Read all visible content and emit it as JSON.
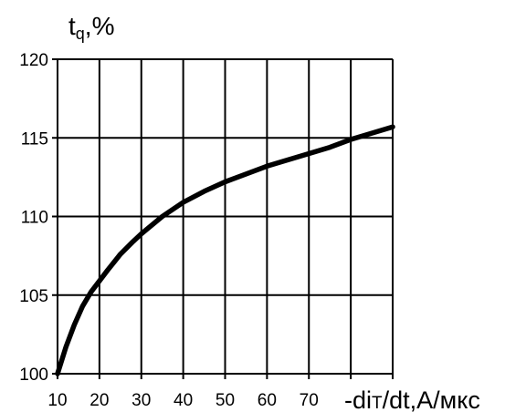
{
  "chart_data": {
    "type": "line",
    "ylabel": {
      "main": "t",
      "sub": "q",
      "suffix": ",%"
    },
    "xlabel": {
      "prefix": "-di",
      "sub": "T",
      "suffix": "/dt,А/мкс"
    },
    "xlim": [
      10,
      90
    ],
    "ylim": [
      100,
      120
    ],
    "x_ticks": [
      10,
      20,
      30,
      40,
      50,
      60,
      70,
      80,
      90
    ],
    "x_tick_labels": [
      "10",
      "20",
      "30",
      "40",
      "50",
      "60",
      "70"
    ],
    "y_ticks": [
      100,
      105,
      110,
      115,
      120
    ],
    "y_tick_labels": [
      "100",
      "105",
      "110",
      "115",
      "120"
    ],
    "grid": true,
    "series": [
      {
        "line_color": "#000000",
        "x": [
          10,
          12,
          14,
          16,
          18,
          20,
          22,
          25,
          28,
          30,
          35,
          40,
          45,
          50,
          55,
          60,
          65,
          70,
          75,
          80,
          85,
          90
        ],
        "y": [
          100.0,
          101.7,
          103.1,
          104.3,
          105.2,
          105.9,
          106.6,
          107.6,
          108.4,
          108.9,
          110.0,
          110.9,
          111.6,
          112.2,
          112.7,
          113.2,
          113.6,
          114.0,
          114.4,
          114.9,
          115.3,
          115.7
        ]
      }
    ]
  }
}
